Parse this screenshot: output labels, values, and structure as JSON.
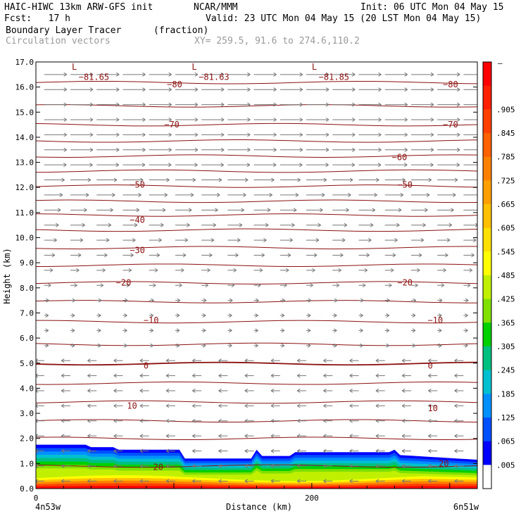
{
  "header": {
    "model": "HAIC-HIWC 13km ARW-GFS init",
    "org": "NCAR/MMM",
    "init": "Init: 06 UTC Mon 04 May 15",
    "fcst": "Fcst:   17 h",
    "valid": "Valid: 23 UTC Mon 04 May 15 (20 LST Mon 04 May 15)",
    "field": "Boundary Layer Tracer",
    "units": "(fraction)",
    "vectors": "Circulation vectors",
    "xy": "XY= 259.5, 91.6 to 274.6,110.2"
  },
  "chart_data": {
    "type": "cross-section",
    "ylabel": "Height (km)",
    "xlabel": "Distance (km)",
    "ylim": [
      0.0,
      17.0
    ],
    "xlim": [
      0,
      320
    ],
    "y_ticks": [
      "0.0",
      "1.0",
      "2.0",
      "3.0",
      "4.0",
      "5.0",
      "6.0",
      "7.0",
      "8.0",
      "9.0",
      "10.0",
      "11.0",
      "12.0",
      "13.0",
      "14.0",
      "15.0",
      "16.0",
      "17.0"
    ],
    "x_ticks": [
      {
        "value": 0,
        "label": "0"
      },
      {
        "value": 200,
        "label": "200"
      }
    ],
    "x_end_labels": {
      "left": "4n53w",
      "right": "6n51w"
    },
    "colorbar": {
      "top_label": "–",
      "labels": [
        ".905",
        ".845",
        ".785",
        ".725",
        ".665",
        ".605",
        ".545",
        ".485",
        ".425",
        ".365",
        ".305",
        ".245",
        ".185",
        ".125",
        ".065",
        ".005"
      ],
      "colors": [
        "#ff0000",
        "#ff2000",
        "#ff4000",
        "#ff6000",
        "#ff8000",
        "#ffa000",
        "#ffc000",
        "#ffe000",
        "#ffff00",
        "#c0f000",
        "#80e000",
        "#00d000",
        "#00c080",
        "#00c0d0",
        "#0090ff",
        "#0050ff",
        "#0000ff",
        "#ffffff"
      ]
    },
    "contour_labels": [
      {
        "text": "L",
        "x": 26,
        "y": 16.8
      },
      {
        "text": "−81.65",
        "x": 31,
        "y": 16.4
      },
      {
        "text": "L",
        "x": 113,
        "y": 16.8
      },
      {
        "text": "−81.63",
        "x": 118,
        "y": 16.4
      },
      {
        "text": "L",
        "x": 200,
        "y": 16.8
      },
      {
        "text": "−81.85",
        "x": 205,
        "y": 16.4
      },
      {
        "text": "−80",
        "x": 95,
        "y": 16.1
      },
      {
        "text": "−80",
        "x": 295,
        "y": 16.1
      },
      {
        "text": "−70",
        "x": 93,
        "y": 14.5
      },
      {
        "text": "−70",
        "x": 295,
        "y": 14.5
      },
      {
        "text": "−60",
        "x": 258,
        "y": 13.2
      },
      {
        "text": "−50",
        "x": 68,
        "y": 12.1
      },
      {
        "text": "−50",
        "x": 262,
        "y": 12.1
      },
      {
        "text": "−40",
        "x": 68,
        "y": 10.7
      },
      {
        "text": "−30",
        "x": 68,
        "y": 9.5
      },
      {
        "text": "−20",
        "x": 58,
        "y": 8.2
      },
      {
        "text": "−20",
        "x": 262,
        "y": 8.2
      },
      {
        "text": "−10",
        "x": 78,
        "y": 6.7
      },
      {
        "text": "−10",
        "x": 284,
        "y": 6.7
      },
      {
        "text": "0",
        "x": 78,
        "y": 4.9
      },
      {
        "text": "0",
        "x": 284,
        "y": 4.9
      },
      {
        "text": "10",
        "x": 66,
        "y": 3.3
      },
      {
        "text": "10",
        "x": 284,
        "y": 3.2
      },
      {
        "text": "20",
        "x": 85,
        "y": 0.85
      },
      {
        "text": "20",
        "x": 292,
        "y": 1.0
      }
    ],
    "isotherm_heights": [
      16.18,
      15.25,
      14.5,
      13.85,
      13.25,
      12.65,
      12.05,
      11.45,
      10.9,
      10.3,
      9.6,
      8.9,
      8.2,
      7.45,
      6.65,
      5.75,
      4.98,
      4.2,
      3.45,
      2.7,
      2.0,
      0.9
    ]
  }
}
